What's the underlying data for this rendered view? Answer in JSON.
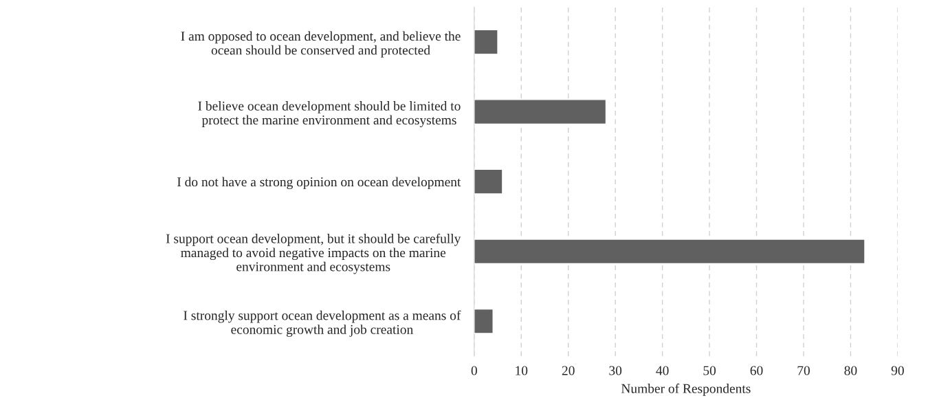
{
  "chart_data": {
    "type": "bar",
    "orientation": "horizontal",
    "categories": [
      "I am opposed to ocean development, and believe the\nocean should be conserved and protected",
      "I believe ocean development should be limited to\nprotect the marine environment and ecosystems",
      "I do not have a strong opinion on ocean development",
      "I support ocean development, but it should be carefully\nmanaged to avoid negative impacts on the marine\nenvironment and ecosystems",
      "I strongly support ocean development as a means of\neconomic growth and job creation"
    ],
    "values": [
      5,
      28,
      6,
      83,
      4
    ],
    "color": "#606060",
    "xlim": [
      0,
      90
    ],
    "xticks": [
      0,
      10,
      20,
      30,
      40,
      50,
      60,
      70,
      80,
      90
    ],
    "xlabel": "Number of Respondents",
    "grid": "x"
  }
}
